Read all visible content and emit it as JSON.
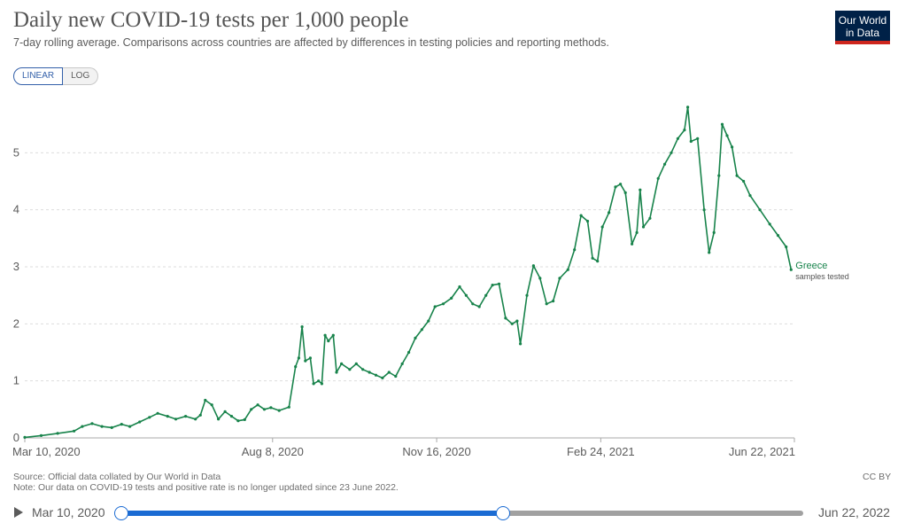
{
  "header": {
    "title": "Daily new COVID-19 tests per 1,000 people",
    "subtitle": "7-day rolling average. Comparisons across countries are affected by differences in testing policies and reporting methods.",
    "logo_line1": "Our World",
    "logo_line2": "in Data"
  },
  "controls": {
    "linear_label": "LINEAR",
    "log_label": "LOG",
    "active_scale": "linear"
  },
  "footer": {
    "source": "Source: Official data collated by Our World in Data",
    "note": "Note: Our data on COVID-19 tests and positive rate is no longer updated since 23 June 2022.",
    "license": "CC BY"
  },
  "timeline": {
    "start_label": "Mar 10, 2020",
    "end_label": "Jun 22, 2022",
    "selection_start": 0.0,
    "selection_end": 0.56
  },
  "colors": {
    "series": "#18834b",
    "grid": "#dddddd",
    "axis_text": "#5b5b5b",
    "accent": "#1a6bd3"
  },
  "chart_data": {
    "type": "line",
    "title": "Daily new COVID-19 tests per 1,000 people",
    "xlabel": "",
    "ylabel": "",
    "grid": true,
    "ylim": [
      0,
      6
    ],
    "yticks": [
      0,
      1,
      2,
      3,
      4,
      5
    ],
    "xlim": [
      "2020-03-10",
      "2021-06-22"
    ],
    "xticks": [
      {
        "date": "2020-03-10",
        "label": "Mar 10, 2020"
      },
      {
        "date": "2020-08-08",
        "label": "Aug 8, 2020"
      },
      {
        "date": "2020-11-16",
        "label": "Nov 16, 2020"
      },
      {
        "date": "2021-02-24",
        "label": "Feb 24, 2021"
      },
      {
        "date": "2021-06-22",
        "label": "Jun 22, 2021"
      }
    ],
    "series": [
      {
        "name": "Greece",
        "sublabel": "samples tested",
        "color": "#18834b",
        "points": [
          [
            "2020-03-10",
            0.01
          ],
          [
            "2020-03-20",
            0.04
          ],
          [
            "2020-03-30",
            0.08
          ],
          [
            "2020-04-09",
            0.12
          ],
          [
            "2020-04-14",
            0.2
          ],
          [
            "2020-04-20",
            0.25
          ],
          [
            "2020-04-26",
            0.2
          ],
          [
            "2020-05-02",
            0.18
          ],
          [
            "2020-05-08",
            0.24
          ],
          [
            "2020-05-13",
            0.2
          ],
          [
            "2020-05-19",
            0.28
          ],
          [
            "2020-05-25",
            0.36
          ],
          [
            "2020-05-30",
            0.43
          ],
          [
            "2020-06-05",
            0.38
          ],
          [
            "2020-06-10",
            0.33
          ],
          [
            "2020-06-16",
            0.38
          ],
          [
            "2020-06-22",
            0.33
          ],
          [
            "2020-06-25",
            0.4
          ],
          [
            "2020-06-28",
            0.66
          ],
          [
            "2020-07-02",
            0.58
          ],
          [
            "2020-07-06",
            0.33
          ],
          [
            "2020-07-10",
            0.46
          ],
          [
            "2020-07-14",
            0.38
          ],
          [
            "2020-07-18",
            0.3
          ],
          [
            "2020-07-22",
            0.32
          ],
          [
            "2020-07-26",
            0.5
          ],
          [
            "2020-07-30",
            0.58
          ],
          [
            "2020-08-03",
            0.5
          ],
          [
            "2020-08-07",
            0.53
          ],
          [
            "2020-08-12",
            0.48
          ],
          [
            "2020-08-18",
            0.54
          ],
          [
            "2020-08-22",
            1.25
          ],
          [
            "2020-08-24",
            1.4
          ],
          [
            "2020-08-26",
            1.95
          ],
          [
            "2020-08-28",
            1.35
          ],
          [
            "2020-08-31",
            1.4
          ],
          [
            "2020-09-02",
            0.95
          ],
          [
            "2020-09-05",
            1.0
          ],
          [
            "2020-09-07",
            0.95
          ],
          [
            "2020-09-09",
            1.8
          ],
          [
            "2020-09-11",
            1.7
          ],
          [
            "2020-09-14",
            1.8
          ],
          [
            "2020-09-16",
            1.15
          ],
          [
            "2020-09-19",
            1.3
          ],
          [
            "2020-09-24",
            1.2
          ],
          [
            "2020-09-28",
            1.3
          ],
          [
            "2020-10-02",
            1.2
          ],
          [
            "2020-10-06",
            1.15
          ],
          [
            "2020-10-10",
            1.1
          ],
          [
            "2020-10-14",
            1.05
          ],
          [
            "2020-10-18",
            1.15
          ],
          [
            "2020-10-22",
            1.08
          ],
          [
            "2020-10-26",
            1.3
          ],
          [
            "2020-10-30",
            1.5
          ],
          [
            "2020-11-03",
            1.75
          ],
          [
            "2020-11-07",
            1.9
          ],
          [
            "2020-11-11",
            2.05
          ],
          [
            "2020-11-15",
            2.3
          ],
          [
            "2020-11-20",
            2.35
          ],
          [
            "2020-11-25",
            2.45
          ],
          [
            "2020-11-30",
            2.65
          ],
          [
            "2020-12-04",
            2.5
          ],
          [
            "2020-12-08",
            2.35
          ],
          [
            "2020-12-12",
            2.3
          ],
          [
            "2020-12-16",
            2.5
          ],
          [
            "2020-12-20",
            2.68
          ],
          [
            "2020-12-24",
            2.7
          ],
          [
            "2020-12-28",
            2.1
          ],
          [
            "2021-01-01",
            2.0
          ],
          [
            "2021-01-04",
            2.05
          ],
          [
            "2021-01-06",
            1.65
          ],
          [
            "2021-01-10",
            2.5
          ],
          [
            "2021-01-14",
            3.02
          ],
          [
            "2021-01-18",
            2.8
          ],
          [
            "2021-01-22",
            2.35
          ],
          [
            "2021-01-26",
            2.4
          ],
          [
            "2021-01-30",
            2.8
          ],
          [
            "2021-02-04",
            2.95
          ],
          [
            "2021-02-08",
            3.3
          ],
          [
            "2021-02-12",
            3.9
          ],
          [
            "2021-02-16",
            3.8
          ],
          [
            "2021-02-19",
            3.15
          ],
          [
            "2021-02-22",
            3.1
          ],
          [
            "2021-02-25",
            3.7
          ],
          [
            "2021-03-01",
            3.95
          ],
          [
            "2021-03-05",
            4.4
          ],
          [
            "2021-03-08",
            4.45
          ],
          [
            "2021-03-11",
            4.3
          ],
          [
            "2021-03-15",
            3.4
          ],
          [
            "2021-03-18",
            3.6
          ],
          [
            "2021-03-20",
            4.35
          ],
          [
            "2021-03-22",
            3.7
          ],
          [
            "2021-03-26",
            3.85
          ],
          [
            "2021-03-31",
            4.55
          ],
          [
            "2021-04-04",
            4.8
          ],
          [
            "2021-04-08",
            5.0
          ],
          [
            "2021-04-12",
            5.25
          ],
          [
            "2021-04-16",
            5.4
          ],
          [
            "2021-04-18",
            5.8
          ],
          [
            "2021-04-20",
            5.2
          ],
          [
            "2021-04-24",
            5.25
          ],
          [
            "2021-04-28",
            4.0
          ],
          [
            "2021-05-01",
            3.25
          ],
          [
            "2021-05-04",
            3.6
          ],
          [
            "2021-05-07",
            4.6
          ],
          [
            "2021-05-09",
            5.5
          ],
          [
            "2021-05-12",
            5.3
          ],
          [
            "2021-05-15",
            5.1
          ],
          [
            "2021-05-18",
            4.6
          ],
          [
            "2021-05-22",
            4.5
          ],
          [
            "2021-05-26",
            4.25
          ],
          [
            "2021-06-01",
            4.0
          ],
          [
            "2021-06-07",
            3.75
          ],
          [
            "2021-06-12",
            3.55
          ],
          [
            "2021-06-17",
            3.35
          ],
          [
            "2021-06-20",
            2.95
          ]
        ]
      }
    ]
  }
}
